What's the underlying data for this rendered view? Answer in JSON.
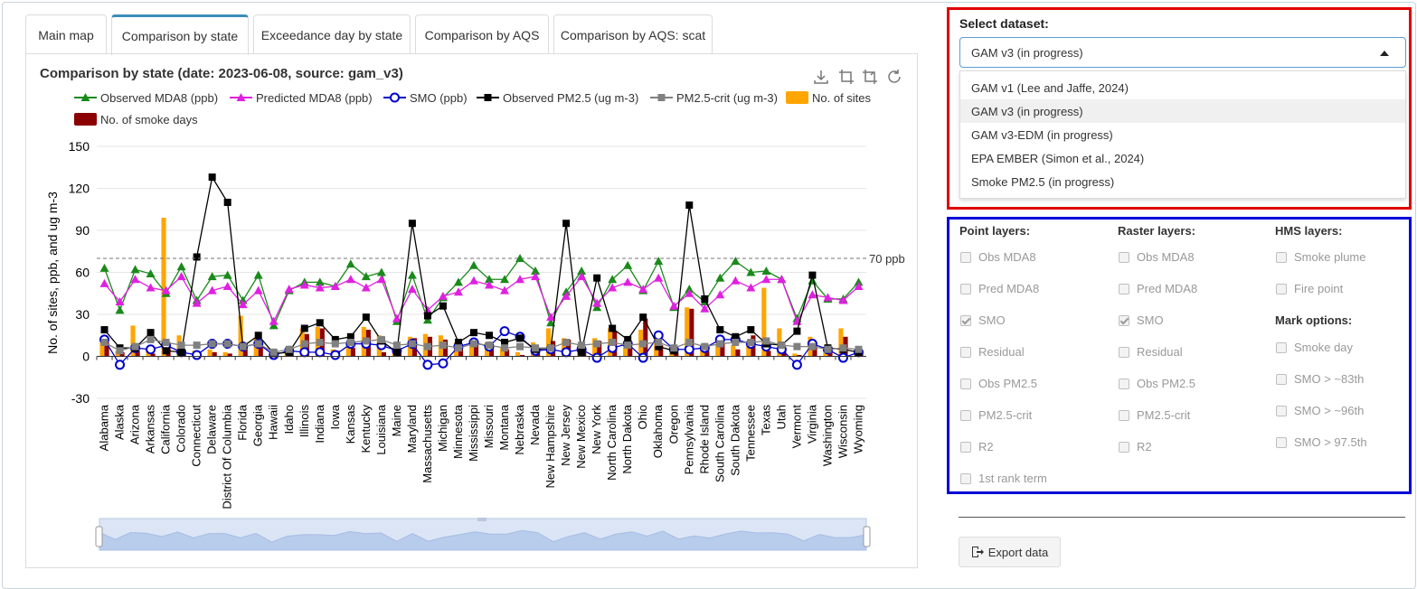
{
  "tabs": [
    {
      "label": "Main map",
      "active": false
    },
    {
      "label": "Comparison by state",
      "active": true
    },
    {
      "label": "Exceedance day by state",
      "active": false
    },
    {
      "label": "Comparison by AQS",
      "active": false
    },
    {
      "label": "Comparison by AQS: scat",
      "active": false
    }
  ],
  "toolbox_icons": [
    "download-icon",
    "crop-icon",
    "undo-crop-icon",
    "restore-icon"
  ],
  "chart_data": {
    "type": "line",
    "title": "Comparison by state (date: 2023-06-08, source: gam_v3)",
    "ylabel": "No. of sites, ppb, and ug m-3",
    "xlabel": "",
    "ylim": [
      -30,
      150
    ],
    "yticks": [
      -30,
      0,
      30,
      60,
      90,
      120,
      150
    ],
    "grid": true,
    "legend_position": "top",
    "reference_line": {
      "value": 70,
      "label": "70 ppb"
    },
    "categories": [
      "Alabama",
      "Alaska",
      "Arizona",
      "Arkansas",
      "California",
      "Colorado",
      "Connecticut",
      "Delaware",
      "District Of Columbia",
      "Florida",
      "Georgia",
      "Hawaii",
      "Idaho",
      "Illinois",
      "Indiana",
      "Iowa",
      "Kansas",
      "Kentucky",
      "Louisiana",
      "Maine",
      "Maryland",
      "Massachusetts",
      "Michigan",
      "Minnesota",
      "Mississippi",
      "Missouri",
      "Montana",
      "Nebraska",
      "Nevada",
      "New Hampshire",
      "New Jersey",
      "New Mexico",
      "New York",
      "North Carolina",
      "North Dakota",
      "Ohio",
      "Oklahoma",
      "Oregon",
      "Pennsylvania",
      "Rhode Island",
      "South Carolina",
      "South Dakota",
      "Tennessee",
      "Texas",
      "Utah",
      "Vermont",
      "Virginia",
      "Washington",
      "Wisconsin",
      "Wyoming"
    ],
    "series": [
      {
        "name": "Observed MDA8 (ppb)",
        "kind": "line",
        "color": "#1a8a1a",
        "marker": "triangle",
        "values": [
          63,
          33,
          62,
          59,
          45,
          64,
          40,
          57,
          58,
          40,
          58,
          22,
          47,
          53,
          53,
          50,
          66,
          57,
          60,
          25,
          58,
          26,
          42,
          53,
          65,
          55,
          55,
          70,
          61,
          24,
          46,
          61,
          35,
          55,
          65,
          47,
          68,
          35,
          48,
          39,
          56,
          68,
          60,
          61,
          55,
          27,
          54,
          41,
          41,
          53
        ]
      },
      {
        "name": "Predicted MDA8 (ppb)",
        "kind": "line",
        "color": "#e020e0",
        "marker": "triangle",
        "values": [
          52,
          39,
          55,
          49,
          47,
          57,
          38,
          47,
          50,
          37,
          47,
          25,
          48,
          51,
          49,
          50,
          55,
          49,
          55,
          27,
          48,
          33,
          43,
          46,
          54,
          51,
          47,
          55,
          57,
          28,
          43,
          57,
          38,
          49,
          53,
          48,
          56,
          36,
          45,
          34,
          44,
          54,
          49,
          55,
          55,
          25,
          44,
          42,
          40,
          50
        ]
      },
      {
        "name": "SMO (ppb)",
        "kind": "line",
        "color": "#0000cc",
        "marker": "open-circle",
        "values": [
          12,
          -6,
          6,
          5,
          8,
          3,
          1,
          9,
          9,
          7,
          9,
          1,
          4,
          3,
          3,
          1,
          9,
          9,
          8,
          4,
          9,
          -6,
          -5,
          7,
          10,
          7,
          18,
          14,
          4,
          5,
          3,
          5,
          -1,
          6,
          9,
          -1,
          15,
          5,
          5,
          6,
          12,
          12,
          9,
          7,
          5,
          -6,
          9,
          5,
          -1,
          3
        ]
      },
      {
        "name": "Observed PM2.5 (ug m-3)",
        "kind": "line",
        "color": "#000000",
        "marker": "square",
        "values": [
          19,
          6,
          6,
          17,
          4,
          3,
          71,
          128,
          110,
          7,
          15,
          2,
          3,
          20,
          24,
          12,
          14,
          28,
          11,
          3,
          95,
          29,
          36,
          10,
          17,
          15,
          10,
          13,
          5,
          6,
          95,
          3,
          56,
          20,
          12,
          28,
          7,
          4,
          108,
          41,
          19,
          14,
          19,
          9,
          8,
          18,
          58,
          6,
          5,
          3
        ]
      },
      {
        "name": "PM2.5-crit (ug m-3)",
        "kind": "line",
        "color": "#808080",
        "marker": "square",
        "values": [
          10,
          4,
          7,
          12,
          10,
          8,
          8,
          9,
          9,
          7,
          9,
          3,
          5,
          9,
          10,
          9,
          10,
          11,
          12,
          8,
          9,
          7,
          8,
          6,
          9,
          8,
          6,
          7,
          6,
          6,
          10,
          8,
          9,
          10,
          8,
          9,
          10,
          6,
          10,
          7,
          9,
          10,
          10,
          11,
          8,
          7,
          7,
          5,
          6,
          5
        ]
      },
      {
        "name": "No. of sites",
        "kind": "bar",
        "color": "#ffa500",
        "values": [
          14,
          4,
          22,
          5,
          99,
          15,
          4,
          5,
          3,
          29,
          13,
          3,
          5,
          20,
          21,
          5,
          10,
          21,
          15,
          5,
          14,
          16,
          15,
          10,
          11,
          10,
          6,
          3,
          10,
          20,
          13,
          9,
          13,
          20,
          7,
          19,
          12,
          5,
          35,
          6,
          14,
          8,
          10,
          49,
          20,
          2,
          14,
          6,
          20,
          3
        ]
      },
      {
        "name": "No. of smoke days",
        "kind": "bar",
        "color": "#8b0000",
        "values": [
          10,
          3,
          4,
          2,
          6,
          3,
          2,
          3,
          2,
          6,
          7,
          1,
          2,
          16,
          20,
          4,
          6,
          19,
          3,
          4,
          13,
          14,
          12,
          7,
          8,
          6,
          5,
          1,
          4,
          11,
          12,
          6,
          11,
          18,
          7,
          27,
          8,
          3,
          34,
          4,
          10,
          5,
          15,
          4,
          5,
          1,
          8,
          7,
          14,
          3
        ]
      }
    ]
  },
  "dataset": {
    "label": "Select dataset:",
    "selected": "GAM v3 (in progress)",
    "options": [
      "GAM v1 (Lee and Jaffe, 2024)",
      "GAM v3 (in progress)",
      "GAM v3-EDM (in progress)",
      "EPA EMBER (Simon et al., 2024)",
      "Smoke PM2.5 (in progress)"
    ]
  },
  "layers": {
    "point_title": "Point layers:",
    "raster_title": "Raster layers:",
    "hms_title": "HMS layers:",
    "mark_title": "Mark options:",
    "point": [
      {
        "label": "Obs MDA8",
        "checked": false
      },
      {
        "label": "Pred MDA8",
        "checked": false
      },
      {
        "label": "SMO",
        "checked": true
      },
      {
        "label": "Residual",
        "checked": false
      },
      {
        "label": "Obs PM2.5",
        "checked": false
      },
      {
        "label": "PM2.5-crit",
        "checked": false
      },
      {
        "label": "R2",
        "checked": false
      },
      {
        "label": "1st rank term",
        "checked": false
      }
    ],
    "raster": [
      {
        "label": "Obs MDA8",
        "checked": false
      },
      {
        "label": "Pred MDA8",
        "checked": false
      },
      {
        "label": "SMO",
        "checked": true
      },
      {
        "label": "Residual",
        "checked": false
      },
      {
        "label": "Obs PM2.5",
        "checked": false
      },
      {
        "label": "PM2.5-crit",
        "checked": false
      },
      {
        "label": "R2",
        "checked": false
      }
    ],
    "hms": [
      {
        "label": "Smoke plume",
        "checked": false
      },
      {
        "label": "Fire point",
        "checked": false
      }
    ],
    "mark": [
      {
        "label": "Smoke day",
        "checked": false
      },
      {
        "label": "SMO > ~83th",
        "checked": false
      },
      {
        "label": "SMO > ~96th",
        "checked": false
      },
      {
        "label": "SMO > 97.5th",
        "checked": false
      }
    ]
  },
  "export_label": "Export data"
}
